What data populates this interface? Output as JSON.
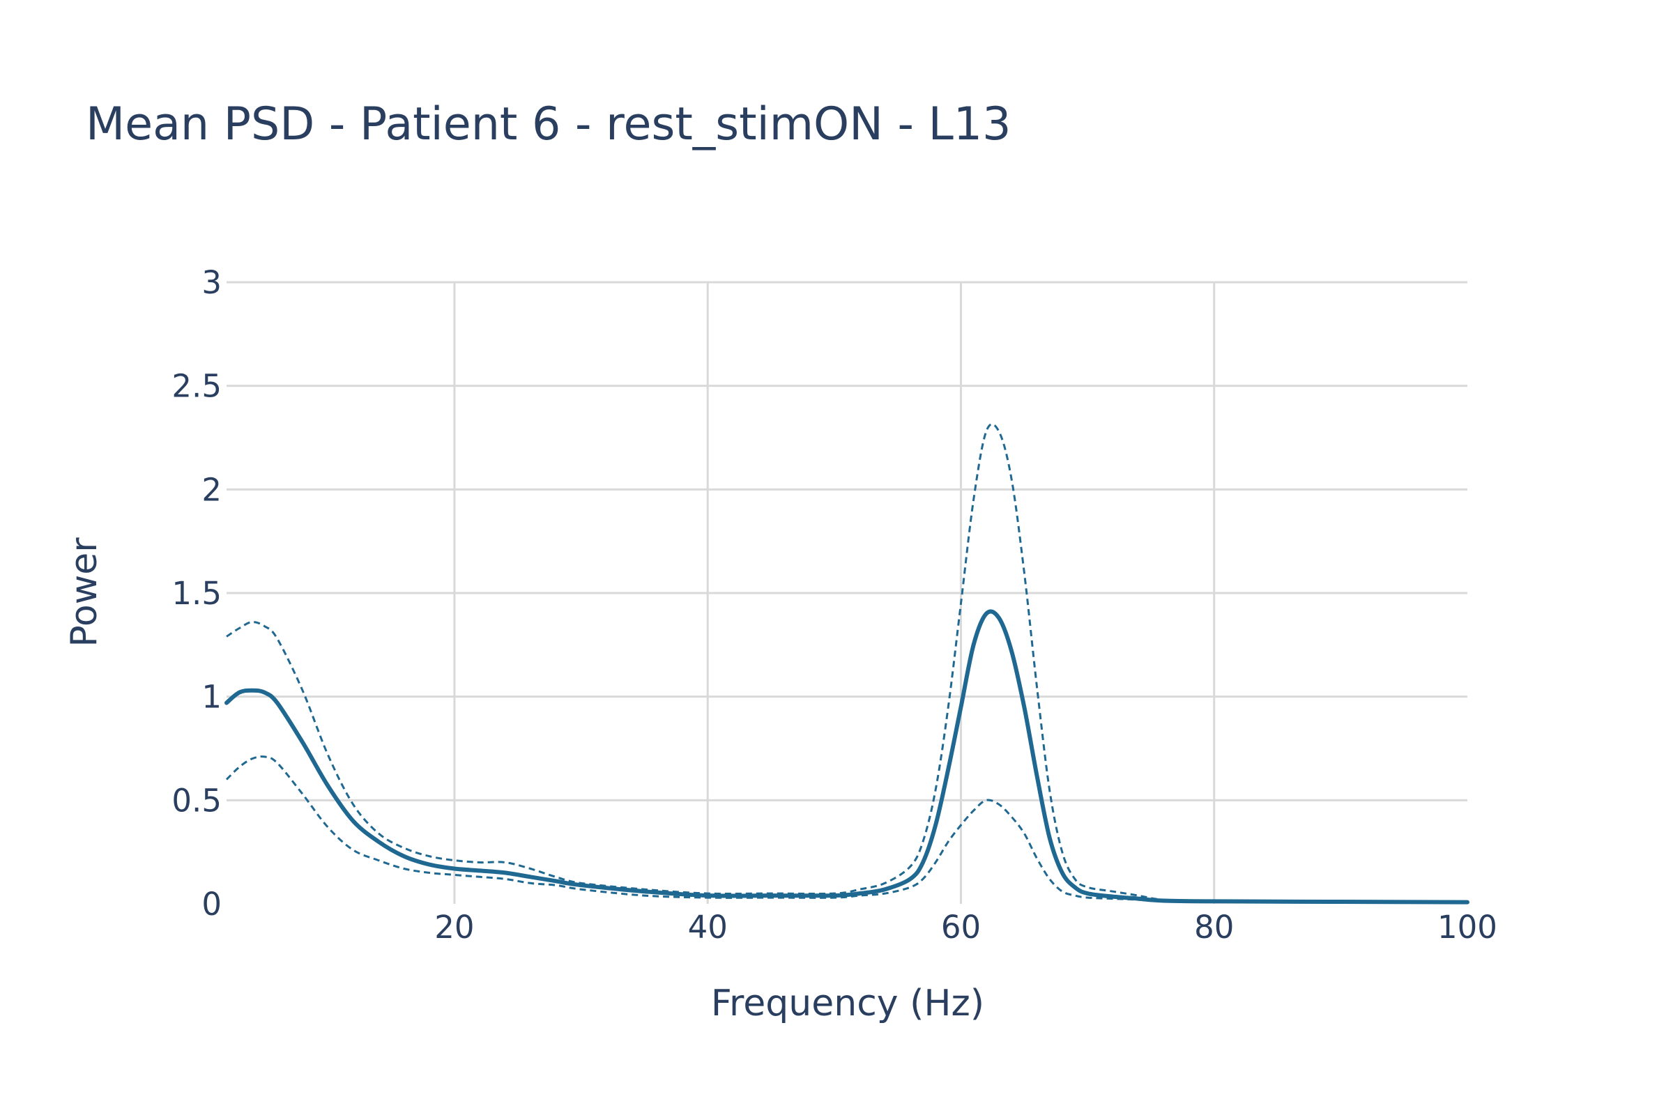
{
  "chart_data": {
    "type": "line",
    "title": "Mean PSD - Patient 6 - rest_stimON - L13",
    "xlabel": "Frequency (Hz)",
    "ylabel": "Power",
    "xlim": [
      2,
      100
    ],
    "ylim": [
      0,
      3
    ],
    "xticks": [
      20,
      40,
      60,
      80,
      100
    ],
    "xtick_labels": [
      "20",
      "40",
      "60",
      "80",
      "100"
    ],
    "yticks": [
      0,
      0.5,
      1,
      1.5,
      2,
      2.5,
      3
    ],
    "ytick_labels": [
      "0",
      "0.5",
      "1",
      "1.5",
      "2",
      "2.5",
      "3"
    ],
    "grid": true,
    "legend": "none",
    "colors": {
      "line": "#1f6891",
      "grid": "#d9d9d9",
      "text": "#2a3f5f"
    },
    "series": [
      {
        "style": "dashed",
        "x": [
          2,
          3,
          4,
          5,
          6,
          8,
          10,
          12,
          14,
          16,
          18,
          20,
          22,
          24,
          26,
          28,
          30,
          35,
          40,
          45,
          50,
          52,
          54,
          56,
          57,
          58,
          59,
          60,
          61,
          62,
          63,
          64,
          65,
          66,
          67,
          68,
          69,
          70,
          72,
          74,
          76,
          80,
          90,
          100
        ],
        "y": [
          1.29,
          1.33,
          1.36,
          1.34,
          1.28,
          1.03,
          0.72,
          0.48,
          0.34,
          0.27,
          0.23,
          0.21,
          0.2,
          0.2,
          0.17,
          0.13,
          0.1,
          0.07,
          0.05,
          0.05,
          0.05,
          0.07,
          0.1,
          0.18,
          0.3,
          0.55,
          0.95,
          1.45,
          1.95,
          2.28,
          2.28,
          2.05,
          1.6,
          1.05,
          0.55,
          0.25,
          0.12,
          0.08,
          0.06,
          0.04,
          0.02,
          0.015,
          0.012,
          0.01
        ]
      },
      {
        "style": "solid",
        "x": [
          2,
          3,
          4,
          5,
          6,
          8,
          10,
          12,
          14,
          16,
          18,
          20,
          22,
          24,
          26,
          28,
          30,
          35,
          40,
          45,
          50,
          52,
          54,
          56,
          57,
          58,
          59,
          60,
          61,
          62,
          63,
          64,
          65,
          66,
          67,
          68,
          69,
          70,
          72,
          74,
          76,
          80,
          90,
          100
        ],
        "y": [
          0.97,
          1.02,
          1.03,
          1.02,
          0.97,
          0.78,
          0.57,
          0.4,
          0.3,
          0.23,
          0.19,
          0.17,
          0.16,
          0.15,
          0.13,
          0.11,
          0.09,
          0.06,
          0.04,
          0.04,
          0.04,
          0.05,
          0.07,
          0.12,
          0.2,
          0.38,
          0.65,
          0.95,
          1.25,
          1.4,
          1.38,
          1.22,
          0.95,
          0.62,
          0.32,
          0.15,
          0.08,
          0.05,
          0.035,
          0.025,
          0.015,
          0.012,
          0.01,
          0.008
        ]
      },
      {
        "style": "dashed",
        "x": [
          2,
          3,
          4,
          5,
          6,
          8,
          10,
          12,
          14,
          16,
          18,
          20,
          22,
          24,
          26,
          28,
          30,
          35,
          40,
          45,
          50,
          52,
          54,
          56,
          57,
          58,
          59,
          60,
          61,
          62,
          63,
          64,
          65,
          66,
          67,
          68,
          69,
          70,
          72,
          74,
          76,
          80,
          90,
          100
        ],
        "y": [
          0.6,
          0.66,
          0.7,
          0.71,
          0.68,
          0.53,
          0.37,
          0.26,
          0.21,
          0.17,
          0.15,
          0.14,
          0.13,
          0.12,
          0.1,
          0.09,
          0.07,
          0.04,
          0.03,
          0.03,
          0.03,
          0.04,
          0.05,
          0.08,
          0.12,
          0.2,
          0.3,
          0.38,
          0.45,
          0.5,
          0.48,
          0.42,
          0.34,
          0.22,
          0.12,
          0.06,
          0.04,
          0.03,
          0.025,
          0.02,
          0.012,
          0.01,
          0.008,
          0.006
        ]
      }
    ]
  }
}
